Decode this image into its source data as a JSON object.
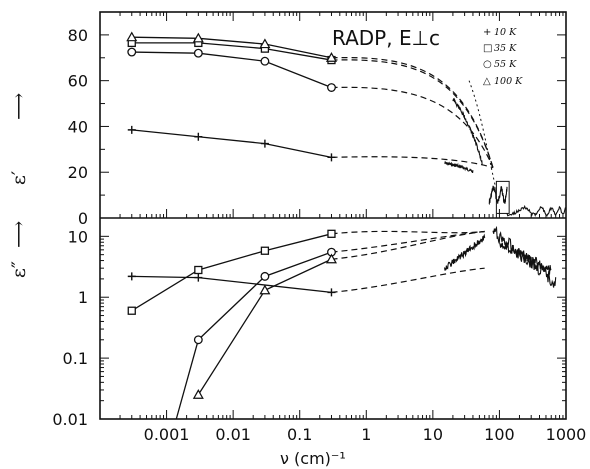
{
  "chart_data": {
    "type": "line",
    "title": "RADP, E⊥c",
    "x_axis": {
      "label": "ν (cm)⁻¹",
      "scale": "log",
      "range": [
        0.0001,
        1000
      ],
      "tick_labels": [
        "0.001",
        "0.01",
        "0.1",
        "1",
        "10",
        "100",
        "1000"
      ],
      "tick_values": [
        0.001,
        0.01,
        0.1,
        1,
        10,
        100,
        1000
      ]
    },
    "top_panel": {
      "ylabel": "ε′",
      "arrow": "⟶",
      "scale": "linear",
      "ylim": [
        0,
        90
      ],
      "tick_labels": [
        "0",
        "20",
        "40",
        "60",
        "80"
      ],
      "tick_values": [
        0,
        20,
        40,
        60,
        80
      ],
      "series": [
        {
          "marker": "+",
          "x": [
            0.0003,
            0.003,
            0.03,
            0.3
          ],
          "y": [
            38.5,
            35.5,
            32.5,
            26.5
          ]
        },
        {
          "marker": "□",
          "x": [
            0.0003,
            0.003,
            0.03,
            0.3
          ],
          "y": [
            76.5,
            76.5,
            74,
            69
          ]
        },
        {
          "marker": "○",
          "x": [
            0.0003,
            0.003,
            0.03,
            0.3
          ],
          "y": [
            72.5,
            72,
            68.5,
            57
          ]
        },
        {
          "marker": "△",
          "x": [
            0.0003,
            0.003,
            0.03,
            0.3
          ],
          "y": [
            79,
            78.5,
            76,
            70
          ]
        }
      ]
    },
    "bottom_panel": {
      "ylabel": "ε″",
      "arrow": "⟶",
      "scale": "log",
      "ylim": [
        0.01,
        20
      ],
      "tick_labels": [
        "0.01",
        "0.1",
        "1",
        "10"
      ],
      "tick_values": [
        0.01,
        0.1,
        1,
        10
      ],
      "series": [
        {
          "marker": "+",
          "x": [
            0.0003,
            0.003,
            0.3
          ],
          "y": [
            2.2,
            2.1,
            1.2
          ]
        },
        {
          "marker": "□",
          "x": [
            0.0003,
            0.003,
            0.03,
            0.3
          ],
          "y": [
            0.6,
            2.8,
            5.8,
            11
          ]
        },
        {
          "marker": "○",
          "x": [
            0.003,
            0.03,
            0.3
          ],
          "y": [
            0.2,
            2.2,
            5.5
          ]
        },
        {
          "marker": "△",
          "x": [
            0.003,
            0.03,
            0.3
          ],
          "y": [
            0.025,
            1.3,
            4.2
          ]
        }
      ]
    },
    "legend": {
      "placement": "top-right",
      "entries": [
        {
          "marker": "+",
          "label": "10 K"
        },
        {
          "marker": "□",
          "label": "35 K"
        },
        {
          "marker": "○",
          "label": "55 K"
        },
        {
          "marker": "△",
          "label": "100 K"
        }
      ]
    },
    "grid": false
  }
}
